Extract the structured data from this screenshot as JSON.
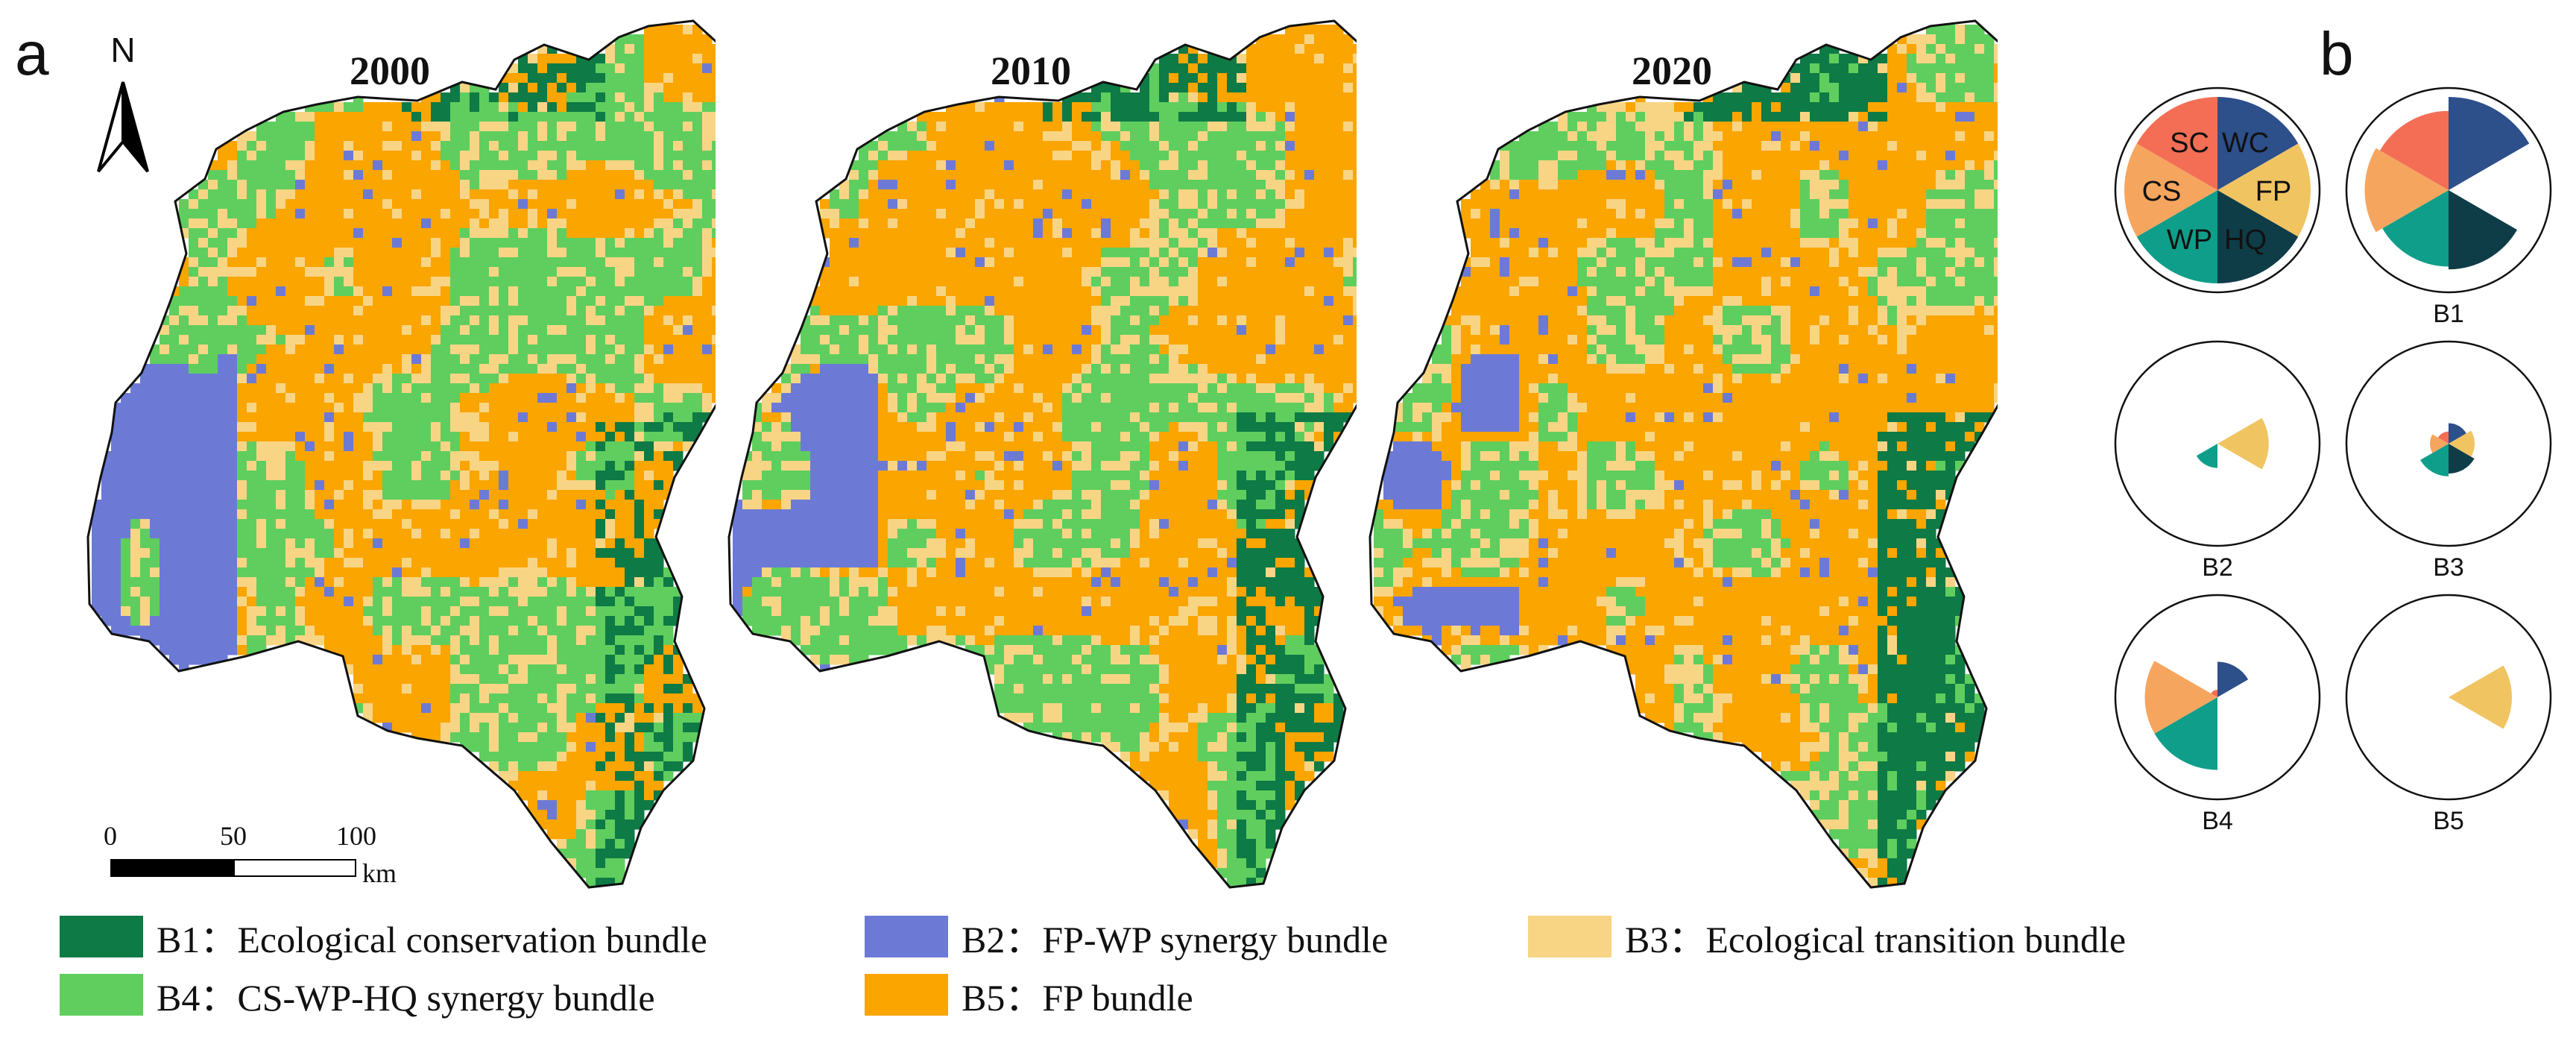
{
  "panels": {
    "a": "a",
    "b": "b"
  },
  "north_arrow": {
    "label": "N"
  },
  "maps": [
    {
      "year": "2000",
      "seed": 11
    },
    {
      "year": "2010",
      "seed": 37
    },
    {
      "year": "2020",
      "seed": 73
    }
  ],
  "scale_bar": {
    "ticks": [
      "0",
      "50",
      "100"
    ],
    "unit": "km"
  },
  "legend": [
    {
      "code": "B1",
      "label": "B1：Ecological conservation bundle",
      "color": "#0e7a45"
    },
    {
      "code": "B2",
      "label": "B2：FP-WP synergy bundle",
      "color": "#6c7ad6"
    },
    {
      "code": "B3",
      "label": "B3：Ecological transition bundle",
      "color": "#f8d585"
    },
    {
      "code": "B4",
      "label": "B4：CS-WP-HQ synergy bundle",
      "color": "#5fce5e"
    },
    {
      "code": "B5",
      "label": "B5：FP bundle",
      "color": "#faa500"
    }
  ],
  "service_sectors": [
    {
      "key": "WC",
      "color": "#2d4f8a"
    },
    {
      "key": "FP",
      "color": "#f1c462"
    },
    {
      "key": "HQ",
      "color": "#0e3d48"
    },
    {
      "key": "WP",
      "color": "#0f9e8a"
    },
    {
      "key": "CS",
      "color": "#f6a55f"
    },
    {
      "key": "SC",
      "color": "#f36e55"
    }
  ],
  "rose_key": {
    "labels": [
      "WC",
      "FP",
      "HQ",
      "WP",
      "CS",
      "SC"
    ]
  },
  "bundle_profiles": [
    {
      "label": "B1",
      "values": {
        "WC": 1.0,
        "FP": 0.0,
        "HQ": 0.85,
        "WP": 0.82,
        "CS": 0.9,
        "SC": 0.85
      }
    },
    {
      "label": "B2",
      "values": {
        "WC": 0.0,
        "FP": 0.55,
        "HQ": 0.0,
        "WP": 0.26,
        "CS": 0.0,
        "SC": 0.0
      }
    },
    {
      "label": "B3",
      "values": {
        "WC": 0.22,
        "FP": 0.28,
        "HQ": 0.32,
        "WP": 0.35,
        "CS": 0.2,
        "SC": 0.13
      }
    },
    {
      "label": "B4",
      "values": {
        "WC": 0.38,
        "FP": 0.0,
        "HQ": 0.0,
        "WP": 0.78,
        "CS": 0.78,
        "SC": 0.08
      }
    },
    {
      "label": "B5",
      "values": {
        "WC": 0.0,
        "FP": 0.68,
        "HQ": 0.0,
        "WP": 0.0,
        "CS": 0.0,
        "SC": 0.0
      }
    }
  ]
}
